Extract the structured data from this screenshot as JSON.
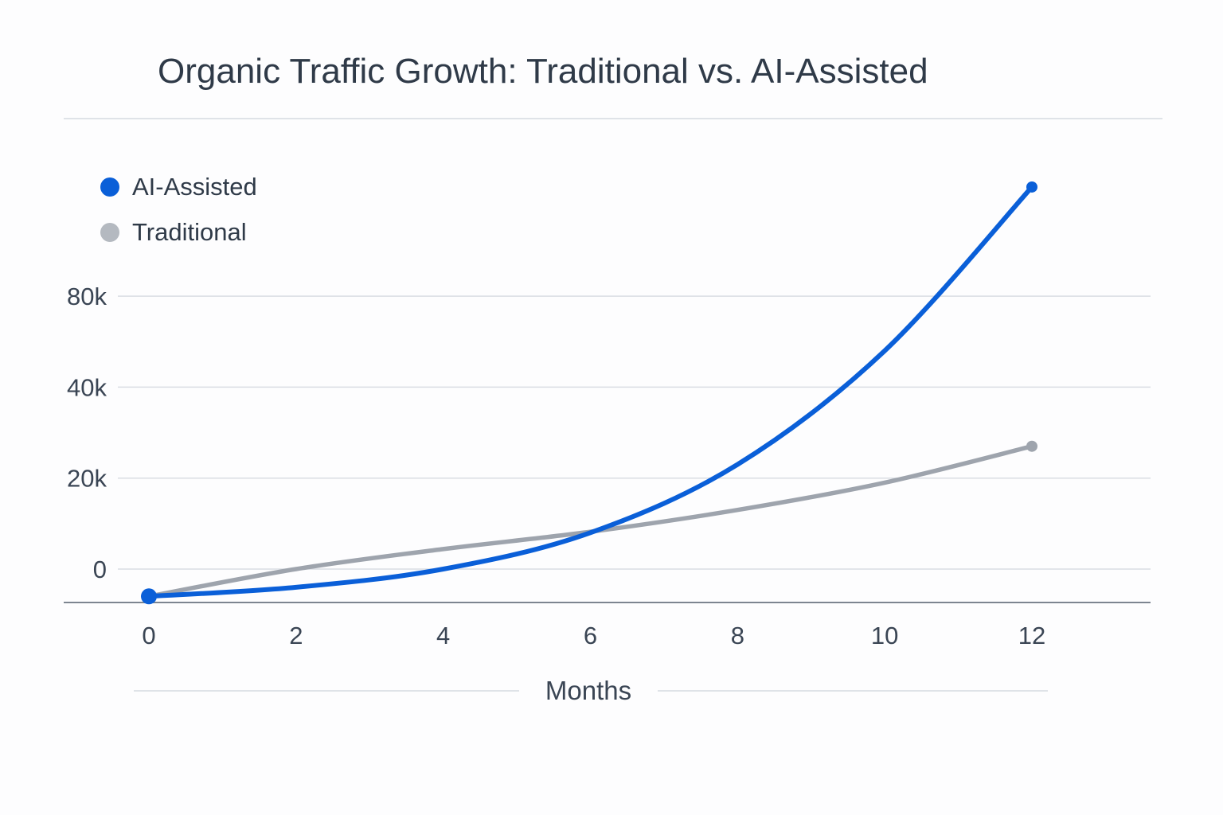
{
  "chart_data": {
    "type": "line",
    "title": "Organic Traffic Growth: Traditional vs. AI-Assisted",
    "xlabel": "Months",
    "ylabel": "",
    "x_ticks": [
      "0",
      "2",
      "4",
      "6",
      "8",
      "10",
      "12"
    ],
    "y_ticks": [
      "0",
      "20k",
      "40k",
      "80k"
    ],
    "y_tick_values": [
      0,
      20000,
      40000,
      80000
    ],
    "y_scale": "non-uniform (evenly spaced gridlines at 0, 20k, 40k, 80k)",
    "xlim": [
      0,
      13
    ],
    "grid": true,
    "legend_position": "top-left",
    "x": [
      0,
      2,
      4,
      6,
      8,
      10,
      12
    ],
    "series": [
      {
        "name": "AI-Assisted",
        "color": "#0a5fd8",
        "values": [
          -6000,
          -4000,
          0,
          8000,
          23000,
          56000,
          128000
        ]
      },
      {
        "name": "Traditional",
        "color": "#9ea4ad",
        "values": [
          -6000,
          0,
          4400,
          8200,
          13000,
          19000,
          27000
        ]
      }
    ]
  }
}
